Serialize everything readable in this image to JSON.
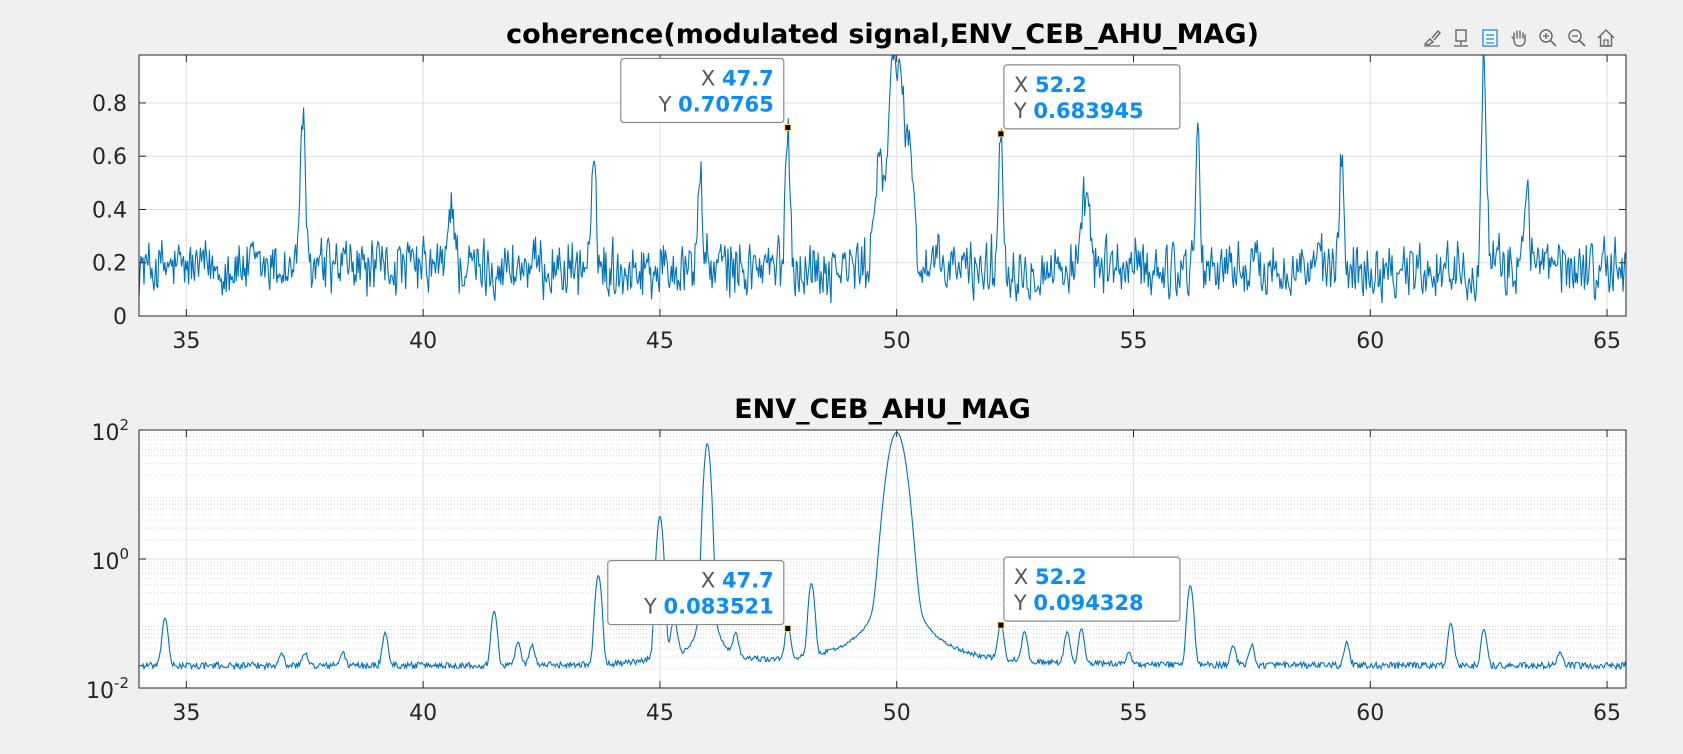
{
  "toolbar": {
    "icons": [
      "brush-icon",
      "datatip-icon",
      "legend-icon",
      "pan-hand-icon",
      "zoom-in-icon",
      "zoom-out-icon",
      "home-icon"
    ]
  },
  "colors": {
    "line": "#0072BD",
    "datatip_value": "#0A8CFF",
    "background": "#F0F0F0",
    "axes": "#FFFFFF",
    "grid": "#DFDFDF"
  },
  "chart_data": [
    {
      "type": "line",
      "title": "coherence(modulated signal,ENV_CEB_AHU_MAG)",
      "xlim": [
        34,
        65.4
      ],
      "ylim": [
        0,
        0.98
      ],
      "yscale": "linear",
      "xticks": [
        35,
        40,
        45,
        50,
        55,
        60,
        65
      ],
      "xtick_labels": [
        "35",
        "40",
        "45",
        "50",
        "55",
        "60",
        "65"
      ],
      "yticks": [
        0,
        0.2,
        0.4,
        0.6,
        0.8
      ],
      "ytick_labels": [
        "0",
        "0.2",
        "0.4",
        "0.6",
        "0.8"
      ],
      "grid": true,
      "baseline": 0.18,
      "noise": 0.13,
      "peaks": [
        {
          "x": 37.45,
          "y": 0.77,
          "w": 0.05
        },
        {
          "x": 40.6,
          "y": 0.45,
          "w": 0.06
        },
        {
          "x": 43.6,
          "y": 0.49,
          "w": 0.06
        },
        {
          "x": 45.85,
          "y": 0.53,
          "w": 0.05
        },
        {
          "x": 47.7,
          "y": 0.70765,
          "w": 0.05
        },
        {
          "x": 49.6,
          "y": 0.55,
          "w": 0.08
        },
        {
          "x": 50.0,
          "y": 1.0,
          "w": 0.17
        },
        {
          "x": 50.3,
          "y": 0.5,
          "w": 0.06
        },
        {
          "x": 52.2,
          "y": 0.683945,
          "w": 0.05
        },
        {
          "x": 54.0,
          "y": 0.48,
          "w": 0.06
        },
        {
          "x": 56.35,
          "y": 0.66,
          "w": 0.05
        },
        {
          "x": 59.4,
          "y": 0.57,
          "w": 0.05
        },
        {
          "x": 62.4,
          "y": 0.92,
          "w": 0.05
        },
        {
          "x": 63.3,
          "y": 0.5,
          "w": 0.06
        }
      ],
      "datatips": [
        {
          "x": 47.7,
          "y": 0.70765,
          "x_label": "X",
          "y_label": "Y",
          "x_text": "47.7",
          "y_text": "0.70765"
        },
        {
          "x": 52.2,
          "y": 0.683945,
          "x_label": "X",
          "y_label": "Y",
          "x_text": "52.2",
          "y_text": "0.683945"
        }
      ]
    },
    {
      "type": "line",
      "title": "ENV_CEB_AHU_MAG",
      "xlim": [
        34,
        65.4
      ],
      "ylim": [
        0.01,
        100
      ],
      "yscale": "log",
      "xticks": [
        35,
        40,
        45,
        50,
        55,
        60,
        65
      ],
      "xtick_labels": [
        "35",
        "40",
        "45",
        "50",
        "55",
        "60",
        "65"
      ],
      "yticks": [
        0.01,
        1,
        100
      ],
      "ytick_labels": [
        {
          "base": "10",
          "exp": "-2"
        },
        {
          "base": "10",
          "exp": "0"
        },
        {
          "base": "10",
          "exp": "2"
        }
      ],
      "grid": true,
      "minor_grid": true,
      "baseline": 0.022,
      "noise": 0.12,
      "peaks": [
        {
          "x": 34.55,
          "y": 0.12,
          "w": 0.05
        },
        {
          "x": 37.0,
          "y": 0.035,
          "w": 0.05
        },
        {
          "x": 37.5,
          "y": 0.035,
          "w": 0.05
        },
        {
          "x": 38.3,
          "y": 0.035,
          "w": 0.05
        },
        {
          "x": 39.2,
          "y": 0.07,
          "w": 0.05
        },
        {
          "x": 41.5,
          "y": 0.15,
          "w": 0.05
        },
        {
          "x": 42.0,
          "y": 0.05,
          "w": 0.05
        },
        {
          "x": 42.3,
          "y": 0.045,
          "w": 0.05
        },
        {
          "x": 43.7,
          "y": 0.55,
          "w": 0.05
        },
        {
          "x": 45.0,
          "y": 4.5,
          "w": 0.05
        },
        {
          "x": 45.3,
          "y": 0.1,
          "w": 0.06
        },
        {
          "x": 46.0,
          "y": 60,
          "w": 0.05
        },
        {
          "x": 46.6,
          "y": 0.06,
          "w": 0.05
        },
        {
          "x": 47.7,
          "y": 0.083521,
          "w": 0.05
        },
        {
          "x": 48.2,
          "y": 0.4,
          "w": 0.05
        },
        {
          "x": 50.0,
          "y": 90,
          "w": 0.13
        },
        {
          "x": 52.2,
          "y": 0.094328,
          "w": 0.05
        },
        {
          "x": 52.7,
          "y": 0.07,
          "w": 0.05
        },
        {
          "x": 53.6,
          "y": 0.07,
          "w": 0.05
        },
        {
          "x": 53.9,
          "y": 0.08,
          "w": 0.05
        },
        {
          "x": 54.9,
          "y": 0.035,
          "w": 0.05
        },
        {
          "x": 56.2,
          "y": 0.38,
          "w": 0.05
        },
        {
          "x": 57.1,
          "y": 0.045,
          "w": 0.05
        },
        {
          "x": 57.5,
          "y": 0.045,
          "w": 0.05
        },
        {
          "x": 59.5,
          "y": 0.05,
          "w": 0.05
        },
        {
          "x": 61.7,
          "y": 0.1,
          "w": 0.05
        },
        {
          "x": 62.4,
          "y": 0.08,
          "w": 0.05
        },
        {
          "x": 64.0,
          "y": 0.035,
          "w": 0.05
        }
      ],
      "datatips": [
        {
          "x": 47.7,
          "y": 0.083521,
          "x_label": "X",
          "y_label": "Y",
          "x_text": "47.7",
          "y_text": "0.083521"
        },
        {
          "x": 52.2,
          "y": 0.094328,
          "x_label": "X",
          "y_label": "Y",
          "x_text": "52.2",
          "y_text": "0.094328"
        }
      ]
    }
  ]
}
